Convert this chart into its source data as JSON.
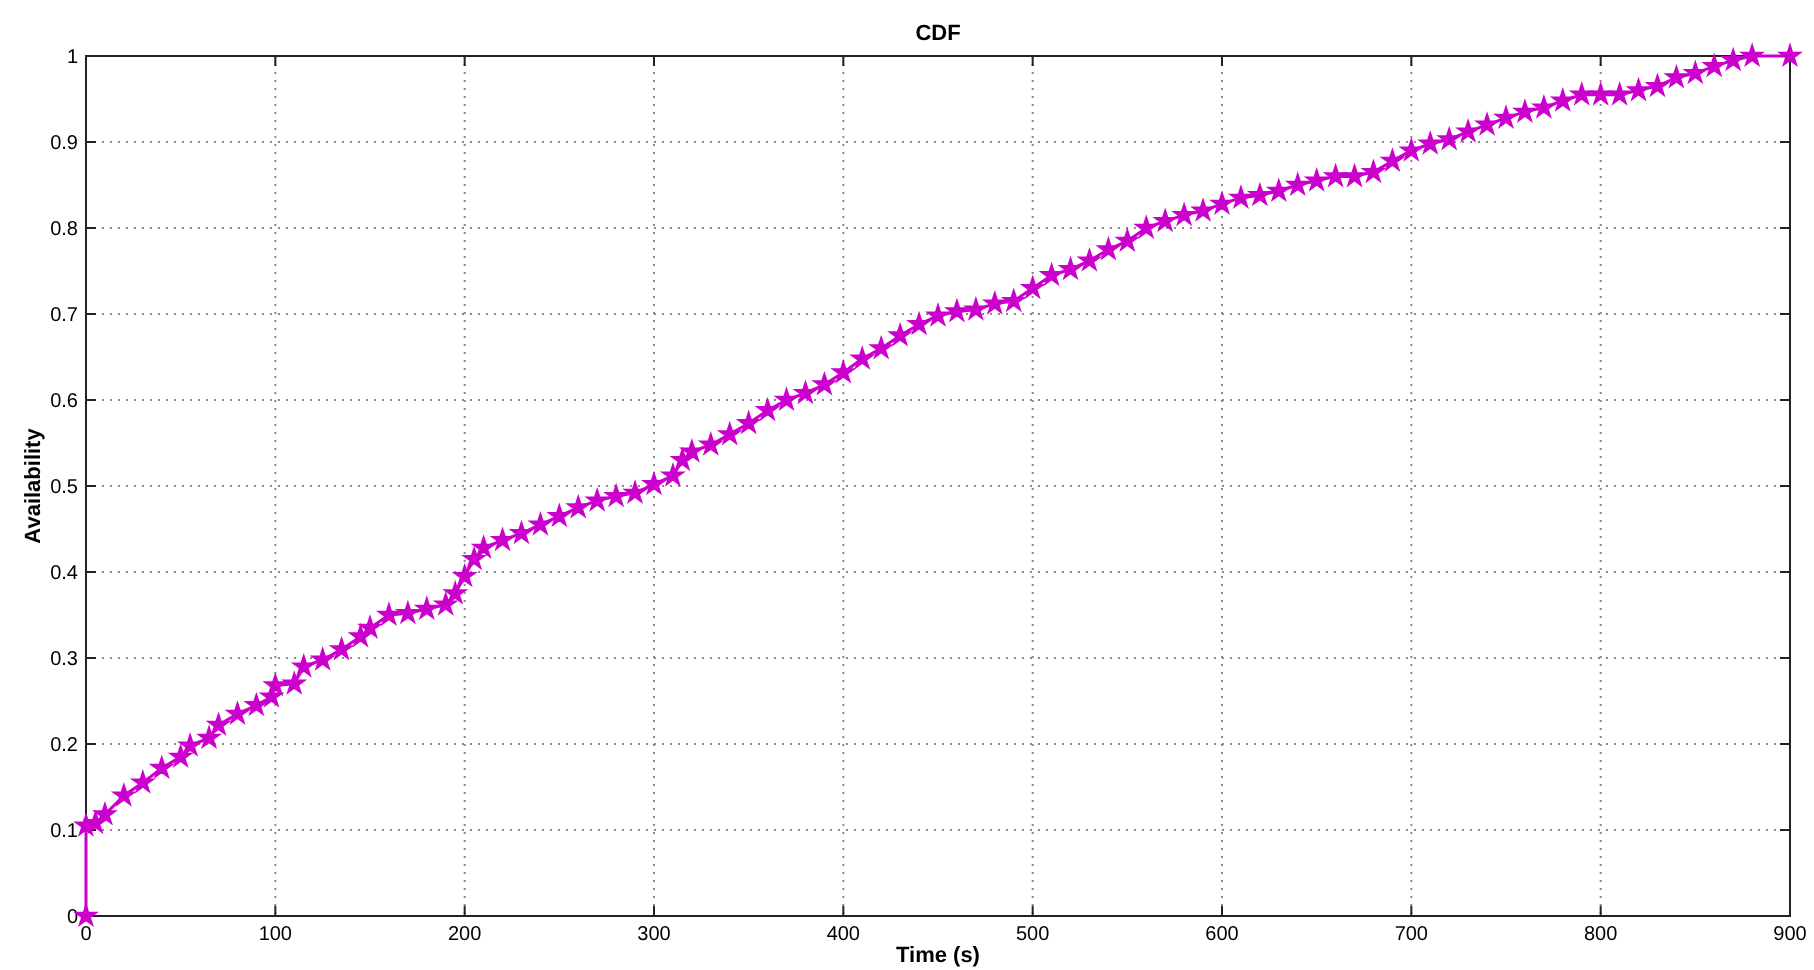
{
  "chart_data": {
    "type": "line",
    "title": "CDF",
    "xlabel": "Time (s)",
    "ylabel": "Availability",
    "xlim": [
      0,
      900
    ],
    "xticks": [
      0,
      100,
      200,
      300,
      400,
      500,
      600,
      700,
      800,
      900
    ],
    "ylim": [
      0,
      1
    ],
    "yticks": [
      0,
      0.1,
      0.2,
      0.3,
      0.4,
      0.5,
      0.6,
      0.7,
      0.8,
      0.9,
      1
    ],
    "grid": true,
    "marker": "star",
    "line_style": "solid",
    "series": [
      {
        "color": "#cc00cc",
        "x": [
          0,
          0,
          5,
          10,
          20,
          30,
          40,
          50,
          55,
          65,
          70,
          80,
          90,
          98,
          100,
          110,
          115,
          125,
          135,
          145,
          150,
          160,
          170,
          180,
          190,
          195,
          200,
          205,
          210,
          220,
          230,
          240,
          250,
          260,
          270,
          280,
          290,
          300,
          310,
          315,
          320,
          330,
          340,
          350,
          360,
          370,
          380,
          390,
          400,
          410,
          420,
          430,
          440,
          450,
          460,
          470,
          480,
          490,
          500,
          510,
          520,
          530,
          540,
          550,
          560,
          570,
          580,
          590,
          600,
          610,
          620,
          630,
          640,
          650,
          660,
          670,
          680,
          690,
          700,
          710,
          720,
          730,
          740,
          750,
          760,
          770,
          780,
          790,
          800,
          810,
          820,
          830,
          840,
          850,
          860,
          870,
          880,
          900
        ],
        "values": [
          0,
          0.105,
          0.108,
          0.118,
          0.14,
          0.155,
          0.172,
          0.185,
          0.198,
          0.207,
          0.222,
          0.235,
          0.245,
          0.255,
          0.268,
          0.27,
          0.29,
          0.298,
          0.31,
          0.325,
          0.335,
          0.35,
          0.352,
          0.357,
          0.362,
          0.375,
          0.395,
          0.415,
          0.428,
          0.437,
          0.445,
          0.455,
          0.465,
          0.475,
          0.483,
          0.488,
          0.492,
          0.502,
          0.512,
          0.53,
          0.54,
          0.548,
          0.56,
          0.573,
          0.588,
          0.6,
          0.608,
          0.618,
          0.632,
          0.648,
          0.66,
          0.675,
          0.688,
          0.698,
          0.703,
          0.705,
          0.712,
          0.715,
          0.73,
          0.745,
          0.752,
          0.762,
          0.775,
          0.785,
          0.8,
          0.808,
          0.815,
          0.82,
          0.828,
          0.835,
          0.838,
          0.843,
          0.85,
          0.855,
          0.86,
          0.86,
          0.865,
          0.878,
          0.89,
          0.898,
          0.903,
          0.912,
          0.92,
          0.928,
          0.935,
          0.94,
          0.948,
          0.955,
          0.955,
          0.955,
          0.96,
          0.965,
          0.975,
          0.98,
          0.988,
          0.995,
          1,
          1
        ]
      }
    ]
  }
}
